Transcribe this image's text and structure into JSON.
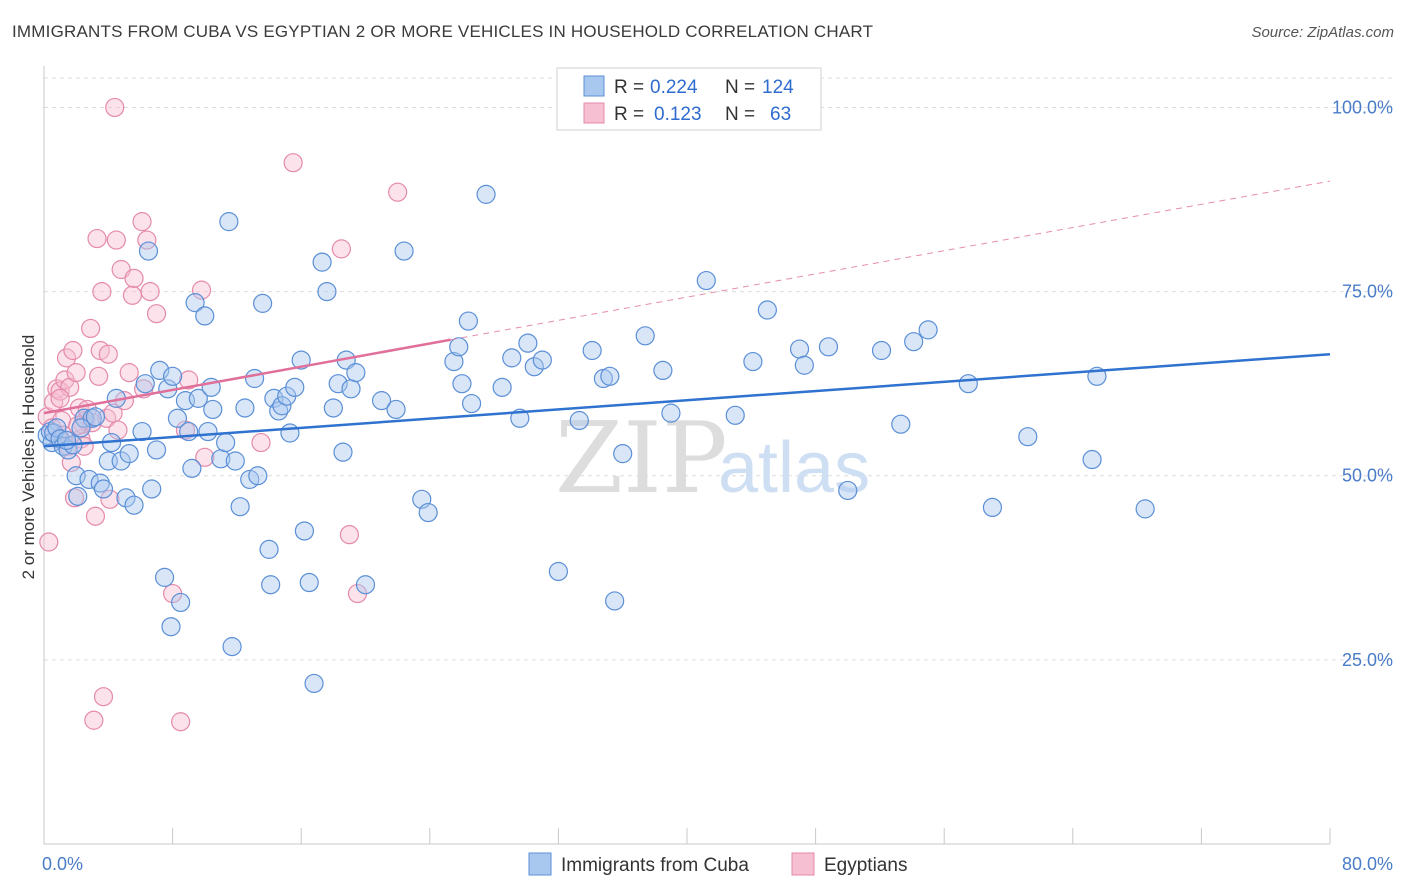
{
  "title": "IMMIGRANTS FROM CUBA VS EGYPTIAN 2 OR MORE VEHICLES IN HOUSEHOLD CORRELATION CHART",
  "source": "Source: ZipAtlas.com",
  "watermark": {
    "zip": "ZIP",
    "atlas": "atlas"
  },
  "colors": {
    "blue_fill": "#a9c8f0",
    "blue_stroke": "#5b8fd6",
    "blue_line": "#2f72cf",
    "pink_fill": "#f7bfd2",
    "pink_stroke": "#e58aaa",
    "pink_line": "#e0709a",
    "axis_label": "#4a7cc8",
    "grid": "#dcdcdc"
  },
  "stats_legend": [
    {
      "r_label": "R =",
      "r_value": "0.224",
      "n_label": "N =",
      "n_value": "124",
      "color": "blue"
    },
    {
      "r_label": "R =",
      "r_value": "0.123",
      "n_label": "N =",
      "n_value": "63",
      "color": "pink"
    }
  ],
  "chart_data": {
    "type": "scatter",
    "xlabel": "",
    "ylabel": "2 or more Vehicles in Household",
    "xlim": [
      0,
      80
    ],
    "ylim": [
      0,
      104
    ],
    "x_tick_labels": [
      {
        "value": 0,
        "label": "0.0%"
      },
      {
        "value": 80,
        "label": "80.0%"
      }
    ],
    "y_tick_labels": [
      {
        "value": 25,
        "label": "25.0%"
      },
      {
        "value": 50,
        "label": "50.0%"
      },
      {
        "value": 75,
        "label": "75.0%"
      },
      {
        "value": 100,
        "label": "100.0%"
      }
    ],
    "grid": true,
    "legend_position": "bottom-center",
    "series": [
      {
        "name": "Immigrants from Cuba",
        "color": "blue",
        "trend": {
          "x": [
            0,
            80
          ],
          "y": [
            54.0,
            66.5
          ],
          "dashed_from": null
        },
        "points": [
          [
            0.2,
            55.5
          ],
          [
            0.4,
            56.0
          ],
          [
            0.5,
            54.5
          ],
          [
            0.6,
            55.8
          ],
          [
            0.8,
            56.5
          ],
          [
            1.0,
            55.0
          ],
          [
            1.2,
            54.0
          ],
          [
            1.5,
            53.5
          ],
          [
            1.8,
            54.2
          ],
          [
            2.0,
            50.0
          ],
          [
            2.1,
            47.2
          ],
          [
            2.5,
            57.8
          ],
          [
            2.8,
            49.5
          ],
          [
            3.0,
            57.8
          ],
          [
            3.2,
            58.0
          ],
          [
            3.5,
            49.0
          ],
          [
            3.7,
            48.2
          ],
          [
            4.0,
            52.0
          ],
          [
            4.2,
            54.5
          ],
          [
            4.5,
            60.5
          ],
          [
            4.8,
            52.0
          ],
          [
            5.1,
            47.0
          ],
          [
            5.3,
            53.0
          ],
          [
            5.6,
            46.0
          ],
          [
            6.1,
            56.0
          ],
          [
            6.3,
            62.5
          ],
          [
            6.5,
            80.5
          ],
          [
            6.7,
            48.2
          ],
          [
            7.0,
            53.5
          ],
          [
            7.2,
            64.3
          ],
          [
            7.5,
            36.2
          ],
          [
            7.7,
            61.8
          ],
          [
            7.9,
            29.5
          ],
          [
            8.0,
            63.5
          ],
          [
            8.3,
            57.8
          ],
          [
            8.5,
            32.8
          ],
          [
            8.8,
            60.2
          ],
          [
            9.0,
            56.0
          ],
          [
            9.2,
            51.0
          ],
          [
            9.4,
            73.5
          ],
          [
            9.6,
            60.5
          ],
          [
            10.0,
            71.7
          ],
          [
            10.2,
            56.0
          ],
          [
            10.4,
            62.0
          ],
          [
            10.5,
            59.0
          ],
          [
            11.0,
            52.3
          ],
          [
            11.3,
            54.5
          ],
          [
            11.5,
            84.5
          ],
          [
            11.7,
            26.8
          ],
          [
            11.9,
            52.0
          ],
          [
            12.2,
            45.8
          ],
          [
            12.5,
            59.2
          ],
          [
            12.8,
            49.5
          ],
          [
            13.1,
            63.2
          ],
          [
            13.3,
            50.0
          ],
          [
            13.6,
            73.4
          ],
          [
            14.0,
            40.0
          ],
          [
            14.1,
            35.2
          ],
          [
            14.3,
            60.5
          ],
          [
            14.6,
            58.8
          ],
          [
            14.8,
            59.5
          ],
          [
            15.1,
            60.8
          ],
          [
            15.3,
            55.8
          ],
          [
            15.6,
            62.0
          ],
          [
            16.0,
            65.7
          ],
          [
            16.2,
            42.5
          ],
          [
            16.5,
            35.5
          ],
          [
            16.8,
            21.8
          ],
          [
            17.3,
            79.0
          ],
          [
            17.6,
            75.0
          ],
          [
            18.0,
            59.2
          ],
          [
            18.3,
            62.5
          ],
          [
            18.6,
            53.2
          ],
          [
            18.8,
            65.7
          ],
          [
            19.1,
            61.8
          ],
          [
            19.4,
            64.0
          ],
          [
            20.0,
            35.2
          ],
          [
            21.0,
            60.2
          ],
          [
            21.9,
            59.0
          ],
          [
            22.4,
            80.5
          ],
          [
            23.5,
            46.8
          ],
          [
            23.9,
            45.0
          ],
          [
            25.5,
            65.5
          ],
          [
            25.8,
            67.5
          ],
          [
            26.0,
            62.5
          ],
          [
            26.4,
            71.0
          ],
          [
            26.6,
            59.8
          ],
          [
            27.5,
            88.2
          ],
          [
            28.5,
            62.0
          ],
          [
            29.1,
            66.0
          ],
          [
            29.6,
            57.8
          ],
          [
            30.1,
            68.0
          ],
          [
            30.5,
            64.8
          ],
          [
            31.0,
            65.7
          ],
          [
            32.0,
            37.0
          ],
          [
            33.3,
            57.5
          ],
          [
            34.1,
            67.0
          ],
          [
            34.8,
            63.2
          ],
          [
            35.2,
            63.5
          ],
          [
            35.5,
            33.0
          ],
          [
            36.0,
            53.0
          ],
          [
            37.4,
            69.0
          ],
          [
            38.5,
            64.3
          ],
          [
            39.0,
            58.5
          ],
          [
            41.2,
            76.5
          ],
          [
            43.0,
            58.2
          ],
          [
            44.1,
            65.5
          ],
          [
            45.0,
            72.5
          ],
          [
            47.0,
            67.2
          ],
          [
            47.3,
            65.0
          ],
          [
            48.8,
            67.5
          ],
          [
            50.0,
            48.0
          ],
          [
            52.1,
            67.0
          ],
          [
            53.3,
            57.0
          ],
          [
            54.1,
            68.2
          ],
          [
            55.0,
            69.8
          ],
          [
            57.5,
            62.5
          ],
          [
            59.0,
            45.7
          ],
          [
            61.2,
            55.3
          ],
          [
            65.2,
            52.2
          ],
          [
            65.5,
            63.5
          ],
          [
            68.5,
            45.5
          ],
          [
            1.4,
            54.8
          ],
          [
            2.3,
            56.5
          ]
        ]
      },
      {
        "name": "Egyptians",
        "color": "pink",
        "trend": {
          "x": [
            0,
            80
          ],
          "y": [
            58.5,
            90.0
          ],
          "dashed_from": 25.3
        },
        "points": [
          [
            0.2,
            58.0
          ],
          [
            0.3,
            41.0
          ],
          [
            0.5,
            56.5
          ],
          [
            0.6,
            60.0
          ],
          [
            0.8,
            61.8
          ],
          [
            1.0,
            61.5
          ],
          [
            1.1,
            57.5
          ],
          [
            1.2,
            55.5
          ],
          [
            1.3,
            63.0
          ],
          [
            1.4,
            66.0
          ],
          [
            1.5,
            54.0
          ],
          [
            1.6,
            62.0
          ],
          [
            1.7,
            51.8
          ],
          [
            1.8,
            67.0
          ],
          [
            1.9,
            47.0
          ],
          [
            2.0,
            64.0
          ],
          [
            2.2,
            59.2
          ],
          [
            2.3,
            55.0
          ],
          [
            2.4,
            57.0
          ],
          [
            2.5,
            54.0
          ],
          [
            2.6,
            57.5
          ],
          [
            2.7,
            59.0
          ],
          [
            2.9,
            70.0
          ],
          [
            3.0,
            57.2
          ],
          [
            3.1,
            16.8
          ],
          [
            3.2,
            44.5
          ],
          [
            3.3,
            82.2
          ],
          [
            3.4,
            63.5
          ],
          [
            3.5,
            67.0
          ],
          [
            3.6,
            75.0
          ],
          [
            3.7,
            20.0
          ],
          [
            3.9,
            57.8
          ],
          [
            4.0,
            66.5
          ],
          [
            4.1,
            46.8
          ],
          [
            4.3,
            58.5
          ],
          [
            4.5,
            82.0
          ],
          [
            4.6,
            56.2
          ],
          [
            4.8,
            78.0
          ],
          [
            5.0,
            60.2
          ],
          [
            5.3,
            64.0
          ],
          [
            5.5,
            74.5
          ],
          [
            5.6,
            76.8
          ],
          [
            6.1,
            84.5
          ],
          [
            6.2,
            61.8
          ],
          [
            6.4,
            82.0
          ],
          [
            6.6,
            75.0
          ],
          [
            7.0,
            72.0
          ],
          [
            8.0,
            34.0
          ],
          [
            8.5,
            16.6
          ],
          [
            8.8,
            56.2
          ],
          [
            9.0,
            63.0
          ],
          [
            9.8,
            75.2
          ],
          [
            10.0,
            52.5
          ],
          [
            13.5,
            54.5
          ],
          [
            15.5,
            92.5
          ],
          [
            18.5,
            80.8
          ],
          [
            19.0,
            42.0
          ],
          [
            19.5,
            34.0
          ],
          [
            22.0,
            88.5
          ],
          [
            4.4,
            100.0
          ],
          [
            0.9,
            55.0
          ],
          [
            1.0,
            60.5
          ],
          [
            2.1,
            56.8
          ]
        ]
      }
    ]
  }
}
